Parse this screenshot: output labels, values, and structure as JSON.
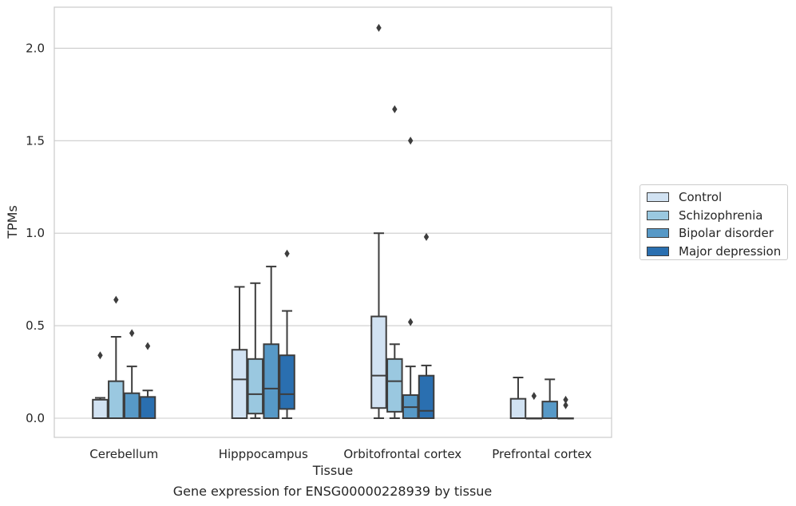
{
  "caption": "Gene expression for ENSG00000228939 by tissue",
  "chart_data": {
    "type": "box",
    "xlabel": "Tissue",
    "ylabel": "TPMs",
    "ylim": [
      -0.1,
      2.23
    ],
    "yticks": [
      "0.0",
      "0.5",
      "1.0",
      "1.5",
      "2.0"
    ],
    "grid": "horizontal",
    "legend_position": "right",
    "categories": [
      "Cerebellum",
      "Hipppocampus",
      "Orbitofrontal cortex",
      "Prefrontal cortex"
    ],
    "series": [
      {
        "name": "Control",
        "color": "#d1e2f2",
        "boxes": [
          {
            "min": 0.0,
            "q1": 0.0,
            "median": 0.0,
            "q3": 0.1,
            "max": 0.11,
            "outliers": [
              0.34
            ]
          },
          {
            "min": 0.0,
            "q1": 0.0,
            "median": 0.21,
            "q3": 0.37,
            "max": 0.71,
            "outliers": []
          },
          {
            "min": 0.0,
            "q1": 0.055,
            "median": 0.23,
            "q3": 0.55,
            "max": 1.0,
            "outliers": [
              2.11
            ]
          },
          {
            "min": 0.0,
            "q1": 0.0,
            "median": 0.0,
            "q3": 0.105,
            "max": 0.22,
            "outliers": []
          }
        ]
      },
      {
        "name": "Schizophrenia",
        "color": "#9ac8e0",
        "boxes": [
          {
            "min": 0.0,
            "q1": 0.0,
            "median": 0.0,
            "q3": 0.2,
            "max": 0.44,
            "outliers": [
              0.64
            ]
          },
          {
            "min": 0.0,
            "q1": 0.025,
            "median": 0.13,
            "q3": 0.32,
            "max": 0.73,
            "outliers": []
          },
          {
            "min": 0.0,
            "q1": 0.035,
            "median": 0.2,
            "q3": 0.32,
            "max": 0.4,
            "outliers": [
              1.67
            ]
          },
          {
            "min": 0.0,
            "q1": 0.0,
            "median": 0.0,
            "q3": 0.0,
            "max": 0.0,
            "outliers": [
              0.12
            ]
          }
        ]
      },
      {
        "name": "Bipolar disorder",
        "color": "#5799c7",
        "boxes": [
          {
            "min": 0.0,
            "q1": 0.0,
            "median": 0.0,
            "q3": 0.135,
            "max": 0.28,
            "outliers": [
              0.46
            ]
          },
          {
            "min": 0.0,
            "q1": 0.0,
            "median": 0.16,
            "q3": 0.4,
            "max": 0.82,
            "outliers": []
          },
          {
            "min": 0.0,
            "q1": 0.0,
            "median": 0.06,
            "q3": 0.125,
            "max": 0.28,
            "outliers": [
              1.5,
              0.52
            ]
          },
          {
            "min": 0.0,
            "q1": 0.0,
            "median": 0.0,
            "q3": 0.09,
            "max": 0.21,
            "outliers": []
          }
        ]
      },
      {
        "name": "Major depression",
        "color": "#2a6fb0",
        "boxes": [
          {
            "min": 0.0,
            "q1": 0.0,
            "median": 0.0,
            "q3": 0.115,
            "max": 0.15,
            "outliers": [
              0.39
            ]
          },
          {
            "min": 0.0,
            "q1": 0.05,
            "median": 0.13,
            "q3": 0.34,
            "max": 0.58,
            "outliers": [
              0.89
            ]
          },
          {
            "min": 0.0,
            "q1": 0.0,
            "median": 0.04,
            "q3": 0.23,
            "max": 0.285,
            "outliers": [
              0.98
            ]
          },
          {
            "min": 0.0,
            "q1": 0.0,
            "median": 0.0,
            "q3": 0.0,
            "max": 0.0,
            "outliers": [
              0.1,
              0.07
            ]
          }
        ]
      }
    ]
  }
}
